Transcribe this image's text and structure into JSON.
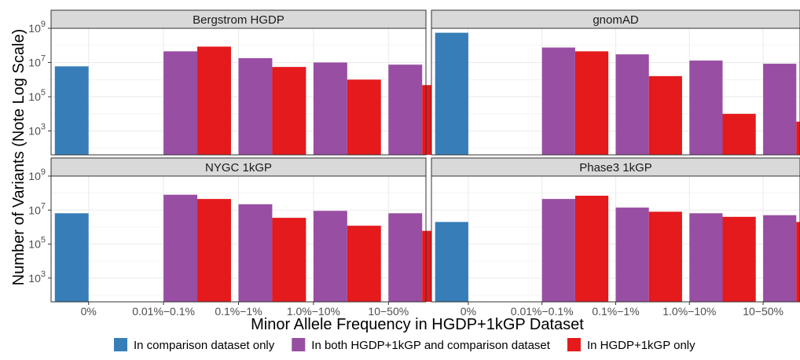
{
  "chart_data": {
    "type": "bar",
    "xlabel": "Minor Allele Frequency in HGDP+1kGP Dataset",
    "ylabel": "Number of Variants (Note Log Scale)",
    "yscale": "log10",
    "ylim": [
      40,
      1000000000
    ],
    "y_ticks": [
      {
        "value": 1000,
        "base": "10",
        "exp": "3"
      },
      {
        "value": 100000,
        "base": "10",
        "exp": "5"
      },
      {
        "value": 10000000,
        "base": "10",
        "exp": "7"
      },
      {
        "value": 1000000000,
        "base": "10",
        "exp": "9"
      }
    ],
    "categories": [
      "0%",
      "0.01%−0.1%",
      "0.1%−1%",
      "1.0%−10%",
      "10−50%"
    ],
    "grid": true,
    "legend_position": "bottom",
    "series": [
      {
        "name": "In comparison dataset only",
        "color": "#377EB8"
      },
      {
        "name": "In both HGDP+1kGP and comparison dataset",
        "color": "#984EA3"
      },
      {
        "name": "In HGDP+1kGP only",
        "color": "#E41A1C"
      }
    ],
    "panels": [
      {
        "title": "Bergstrom HGDP",
        "values": [
          [
            6000000,
            null,
            null
          ],
          [
            null,
            45000000,
            85000000
          ],
          [
            null,
            18000000,
            5500000
          ],
          [
            null,
            10000000,
            1000000
          ],
          [
            null,
            7500000,
            480000
          ]
        ]
      },
      {
        "title": "gnomAD",
        "values": [
          [
            550000000,
            null,
            null
          ],
          [
            null,
            75000000,
            45000000
          ],
          [
            null,
            30000000,
            1600000
          ],
          [
            null,
            13000000,
            10000
          ],
          [
            null,
            8500000,
            3500
          ]
        ]
      },
      {
        "title": "NYGC 1kGP",
        "values": [
          [
            6500000,
            null,
            null
          ],
          [
            null,
            80000000,
            45000000
          ],
          [
            null,
            22000000,
            3500000
          ],
          [
            null,
            9000000,
            1200000
          ],
          [
            null,
            6500000,
            600000
          ]
        ]
      },
      {
        "title": "Phase3 1kGP",
        "values": [
          [
            2000000,
            null,
            null
          ],
          [
            null,
            45000000,
            70000000
          ],
          [
            null,
            14000000,
            8000000
          ],
          [
            null,
            6500000,
            4000000
          ],
          [
            null,
            5000000,
            2000000
          ]
        ]
      }
    ]
  }
}
